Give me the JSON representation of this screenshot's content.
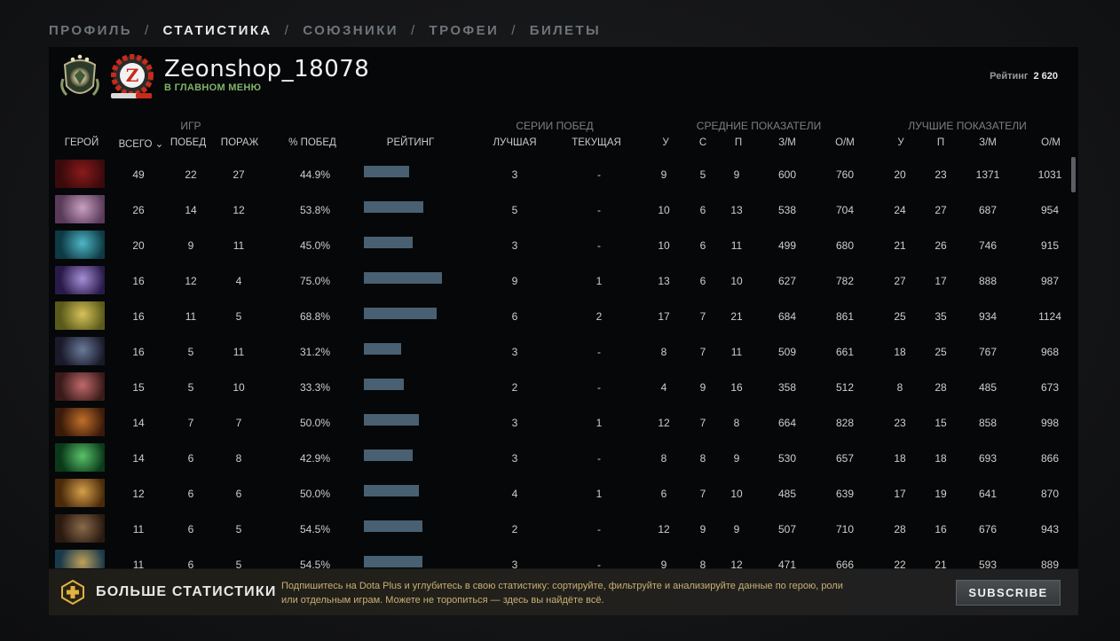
{
  "nav": {
    "tabs": [
      {
        "label": "ПРОФИЛЬ",
        "active": false
      },
      {
        "label": "СТАТИСТИКА",
        "active": true
      },
      {
        "label": "СОЮЗНИКИ",
        "active": false
      },
      {
        "label": "ТРОФЕИ",
        "active": false
      },
      {
        "label": "БИЛЕТЫ",
        "active": false
      }
    ],
    "separator": "/"
  },
  "profile": {
    "name": "Zeonshop_18078",
    "status": "В ГЛАВНОМ МЕНЮ",
    "rating_label": "Рейтинг",
    "rating_value": "2 620",
    "avatar_letter": "Z",
    "rank_icon": "rank-medal-icon"
  },
  "table": {
    "groups": {
      "games": "ИГР",
      "streaks": "СЕРИИ ПОБЕД",
      "averages": "СРЕДНИЕ ПОКАЗАТЕЛИ",
      "best": "ЛУЧШИЕ ПОКАЗАТЕЛИ"
    },
    "columns": {
      "hero": "ГЕРОЙ",
      "total": "ВСЕГО",
      "wins": "ПОБЕД",
      "losses": "ПОРАЖ",
      "winrate": "% ПОБЕД",
      "rating": "РЕЙТИНГ",
      "best_streak": "ЛУЧШАЯ",
      "current_streak": "ТЕКУЩАЯ",
      "avg_k": "У",
      "avg_d": "С",
      "avg_a": "П",
      "avg_gpm": "З/М",
      "avg_xpm": "О/М",
      "best_k": "У",
      "best_a": "П",
      "best_gpm": "З/М",
      "best_xpm": "О/М"
    },
    "sort_indicator": "⌄",
    "rows": [
      {
        "hero_colors": [
          "#3a0a0c",
          "#8a1a1a"
        ],
        "total": "49",
        "wins": "22",
        "losses": "27",
        "winrate": "44.9%",
        "rating": 0.58,
        "best_streak": "3",
        "current_streak": "-",
        "avg_k": "9",
        "avg_d": "5",
        "avg_a": "9",
        "avg_gpm": "600",
        "avg_xpm": "760",
        "best_k": "20",
        "best_a": "23",
        "best_gpm": "1371",
        "best_xpm": "1031"
      },
      {
        "hero_colors": [
          "#5a3a5a",
          "#c9a0c0"
        ],
        "total": "26",
        "wins": "14",
        "losses": "12",
        "winrate": "53.8%",
        "rating": 0.76,
        "best_streak": "5",
        "current_streak": "-",
        "avg_k": "10",
        "avg_d": "6",
        "avg_a": "13",
        "avg_gpm": "538",
        "avg_xpm": "704",
        "best_k": "24",
        "best_a": "27",
        "best_gpm": "687",
        "best_xpm": "954"
      },
      {
        "hero_colors": [
          "#0d3a44",
          "#4fb6c7"
        ],
        "total": "20",
        "wins": "9",
        "losses": "11",
        "winrate": "45.0%",
        "rating": 0.63,
        "best_streak": "3",
        "current_streak": "-",
        "avg_k": "10",
        "avg_d": "6",
        "avg_a": "11",
        "avg_gpm": "499",
        "avg_xpm": "680",
        "best_k": "21",
        "best_a": "26",
        "best_gpm": "746",
        "best_xpm": "915"
      },
      {
        "hero_colors": [
          "#2a1a4a",
          "#a58fd6"
        ],
        "total": "16",
        "wins": "12",
        "losses": "4",
        "winrate": "75.0%",
        "rating": 1.0,
        "best_streak": "9",
        "current_streak": "1",
        "avg_k": "13",
        "avg_d": "6",
        "avg_a": "10",
        "avg_gpm": "627",
        "avg_xpm": "782",
        "best_k": "27",
        "best_a": "17",
        "best_gpm": "888",
        "best_xpm": "987"
      },
      {
        "hero_colors": [
          "#5a5a1a",
          "#d6c25a"
        ],
        "total": "16",
        "wins": "11",
        "losses": "5",
        "winrate": "68.8%",
        "rating": 0.93,
        "best_streak": "6",
        "current_streak": "2",
        "avg_k": "17",
        "avg_d": "7",
        "avg_a": "21",
        "avg_gpm": "684",
        "avg_xpm": "861",
        "best_k": "25",
        "best_a": "35",
        "best_gpm": "934",
        "best_xpm": "1124"
      },
      {
        "hero_colors": [
          "#1a1a2a",
          "#6a7a9a"
        ],
        "total": "16",
        "wins": "5",
        "losses": "11",
        "winrate": "31.2%",
        "rating": 0.48,
        "best_streak": "3",
        "current_streak": "-",
        "avg_k": "8",
        "avg_d": "7",
        "avg_a": "11",
        "avg_gpm": "509",
        "avg_xpm": "661",
        "best_k": "18",
        "best_a": "25",
        "best_gpm": "767",
        "best_xpm": "968"
      },
      {
        "hero_colors": [
          "#3a1a1a",
          "#c06a6a"
        ],
        "total": "15",
        "wins": "5",
        "losses": "10",
        "winrate": "33.3%",
        "rating": 0.51,
        "best_streak": "2",
        "current_streak": "-",
        "avg_k": "4",
        "avg_d": "9",
        "avg_a": "16",
        "avg_gpm": "358",
        "avg_xpm": "512",
        "best_k": "8",
        "best_a": "28",
        "best_gpm": "485",
        "best_xpm": "673"
      },
      {
        "hero_colors": [
          "#3a1a0a",
          "#c0702a"
        ],
        "total": "14",
        "wins": "7",
        "losses": "7",
        "winrate": "50.0%",
        "rating": 0.7,
        "best_streak": "3",
        "current_streak": "1",
        "avg_k": "12",
        "avg_d": "7",
        "avg_a": "8",
        "avg_gpm": "664",
        "avg_xpm": "828",
        "best_k": "23",
        "best_a": "15",
        "best_gpm": "858",
        "best_xpm": "998"
      },
      {
        "hero_colors": [
          "#0a3a1a",
          "#5ac26a"
        ],
        "total": "14",
        "wins": "6",
        "losses": "8",
        "winrate": "42.9%",
        "rating": 0.63,
        "best_streak": "3",
        "current_streak": "-",
        "avg_k": "8",
        "avg_d": "8",
        "avg_a": "9",
        "avg_gpm": "530",
        "avg_xpm": "657",
        "best_k": "18",
        "best_a": "18",
        "best_gpm": "693",
        "best_xpm": "866"
      },
      {
        "hero_colors": [
          "#4a2a0a",
          "#d6a04a"
        ],
        "total": "12",
        "wins": "6",
        "losses": "6",
        "winrate": "50.0%",
        "rating": 0.7,
        "best_streak": "4",
        "current_streak": "1",
        "avg_k": "6",
        "avg_d": "7",
        "avg_a": "10",
        "avg_gpm": "485",
        "avg_xpm": "639",
        "best_k": "17",
        "best_a": "19",
        "best_gpm": "641",
        "best_xpm": "870"
      },
      {
        "hero_colors": [
          "#2a1a10",
          "#8a6a4a"
        ],
        "total": "11",
        "wins": "6",
        "losses": "5",
        "winrate": "54.5%",
        "rating": 0.75,
        "best_streak": "2",
        "current_streak": "-",
        "avg_k": "12",
        "avg_d": "9",
        "avg_a": "9",
        "avg_gpm": "507",
        "avg_xpm": "710",
        "best_k": "28",
        "best_a": "16",
        "best_gpm": "676",
        "best_xpm": "943"
      },
      {
        "hero_colors": [
          "#1a3a4a",
          "#c0a05a"
        ],
        "total": "11",
        "wins": "6",
        "losses": "5",
        "winrate": "54.5%",
        "rating": 0.75,
        "best_streak": "3",
        "current_streak": "-",
        "avg_k": "9",
        "avg_d": "8",
        "avg_a": "12",
        "avg_gpm": "471",
        "avg_xpm": "666",
        "best_k": "22",
        "best_a": "21",
        "best_gpm": "593",
        "best_xpm": "889"
      }
    ]
  },
  "promo": {
    "title": "БОЛЬШЕ СТАТИСТИКИ",
    "description": "Подпишитесь на Dota Plus и углубитесь в свою статистику: сортируйте, фильтруйте и анализируйте данные по герою, роли или отдельным играм. Можете не торопиться — здесь вы найдёте всё.",
    "button": "SUBSCRIBE"
  },
  "colors": {
    "rating_bar": "#486071",
    "status_green": "#7fb36b",
    "promo_text": "#c9b173",
    "accent_gold": "#e0b341"
  }
}
